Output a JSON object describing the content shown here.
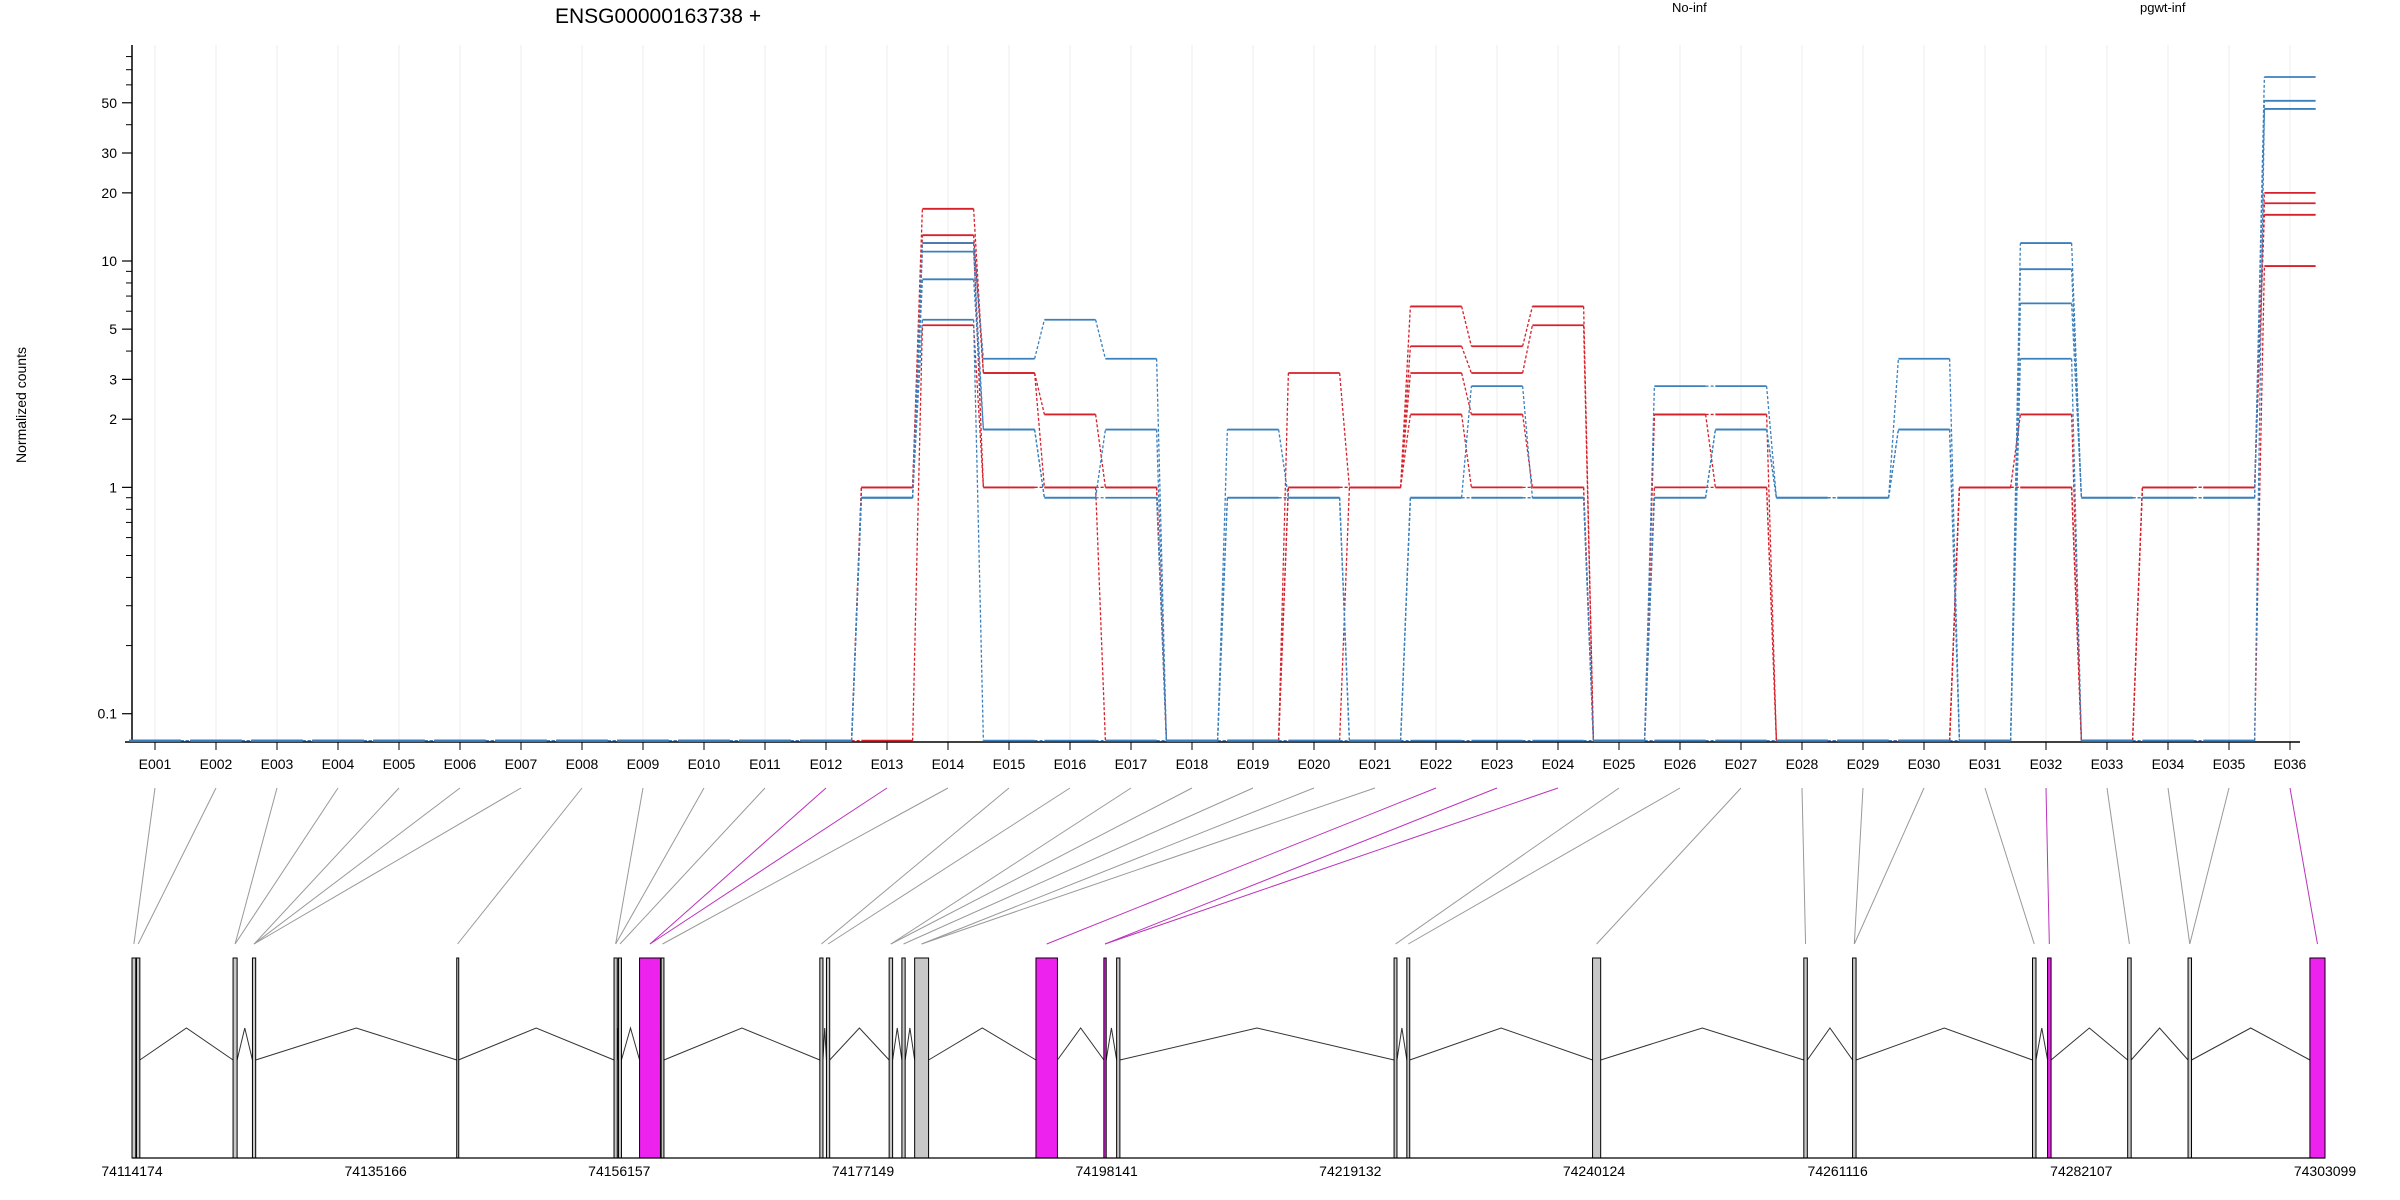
{
  "title": "ENSG00000163738 +",
  "colors": {
    "No-inf": "#d6202a",
    "pgwt-inf": "#3b80bd",
    "tested": "#ee22ee",
    "untested": "#c8c8c8"
  },
  "chart_data": {
    "type": "line",
    "ylabel": "Normalized counts",
    "yscale": "log",
    "yticks": [
      0.1,
      1,
      2,
      3,
      5,
      10,
      20,
      30,
      50
    ],
    "ylim": [
      0.075,
      90
    ],
    "legend_placement": "top",
    "categories": [
      "E001",
      "E002",
      "E003",
      "E004",
      "E005",
      "E006",
      "E007",
      "E008",
      "E009",
      "E010",
      "E011",
      "E012",
      "E013",
      "E014",
      "E015",
      "E016",
      "E017",
      "E018",
      "E019",
      "E020",
      "E021",
      "E022",
      "E023",
      "E024",
      "E025",
      "E026",
      "E027",
      "E028",
      "E029",
      "E030",
      "E031",
      "E032",
      "E033",
      "E034",
      "E035",
      "E036"
    ],
    "series": [
      {
        "name": "No-inf",
        "color": "#d6202a",
        "values": [
          0,
          0,
          0,
          0,
          0,
          0,
          0,
          0,
          0,
          0,
          0,
          0,
          1,
          17,
          3.2,
          2.1,
          1,
          0,
          0,
          3.2,
          1,
          6.3,
          4.2,
          6.3,
          0,
          2.1,
          2.1,
          0,
          0,
          0,
          1,
          2.1,
          0,
          1,
          1,
          20
        ]
      },
      {
        "name": "No-inf",
        "color": "#d6202a",
        "values": [
          0,
          0,
          0,
          0,
          0,
          0,
          0,
          0,
          0,
          0,
          0,
          0,
          1,
          13,
          3.2,
          1,
          1,
          0,
          0,
          1,
          1,
          4.2,
          3.2,
          5.2,
          0,
          2.1,
          1,
          0,
          0,
          0,
          1,
          1,
          0,
          1,
          1,
          18
        ]
      },
      {
        "name": "No-inf",
        "color": "#d6202a",
        "values": [
          0,
          0,
          0,
          0,
          0,
          0,
          0,
          0,
          0,
          0,
          0,
          0,
          1,
          12,
          1,
          1,
          1,
          0,
          0,
          1,
          1,
          3.2,
          2.1,
          1,
          0,
          1,
          1,
          0,
          0,
          0,
          1,
          1,
          0,
          1,
          1,
          16
        ]
      },
      {
        "name": "No-inf",
        "color": "#d6202a",
        "values": [
          0,
          0,
          0,
          0,
          0,
          0,
          0,
          0,
          0,
          0,
          0,
          0,
          0,
          5.2,
          1,
          1,
          0,
          0,
          0,
          0,
          1,
          2.1,
          1,
          1,
          0,
          0,
          0,
          0,
          0,
          0,
          1,
          1,
          0,
          0,
          0,
          9.5
        ]
      },
      {
        "name": "pgwt-inf",
        "color": "#3b80bd",
        "values": [
          0,
          0,
          0,
          0,
          0,
          0,
          0,
          0,
          0,
          0,
          0,
          0,
          0.9,
          12,
          3.7,
          5.5,
          3.7,
          0,
          1.8,
          0.9,
          0,
          0.9,
          2.8,
          0.9,
          0,
          2.8,
          2.8,
          0.9,
          0.9,
          3.7,
          0,
          12,
          0.9,
          0.9,
          0.9,
          65
        ]
      },
      {
        "name": "pgwt-inf",
        "color": "#3b80bd",
        "values": [
          0,
          0,
          0,
          0,
          0,
          0,
          0,
          0,
          0,
          0,
          0,
          0,
          0.9,
          11,
          1.8,
          0.9,
          1.8,
          0,
          0.9,
          0.9,
          0,
          0.9,
          0.9,
          0.9,
          0,
          0.9,
          1.8,
          0.9,
          0.9,
          1.8,
          0,
          9.2,
          0.9,
          0.9,
          0.9,
          51
        ]
      },
      {
        "name": "pgwt-inf",
        "color": "#3b80bd",
        "values": [
          0,
          0,
          0,
          0,
          0,
          0,
          0,
          0,
          0,
          0,
          0,
          0,
          0.9,
          8.3,
          1.8,
          0.9,
          0.9,
          0,
          0.9,
          0.9,
          0,
          0.9,
          0.9,
          0.9,
          0,
          0.9,
          1.8,
          0.9,
          0.9,
          1.8,
          0,
          6.5,
          0.9,
          0.9,
          0.9,
          47
        ]
      },
      {
        "name": "pgwt-inf",
        "color": "#3b80bd",
        "values": [
          0,
          0,
          0,
          0,
          0,
          0,
          0,
          0,
          0,
          0,
          0,
          0,
          0.9,
          5.5,
          0,
          0,
          0,
          0,
          0,
          0,
          0,
          0,
          0,
          0,
          0,
          0,
          0,
          0,
          0,
          0,
          0,
          3.7,
          0,
          0,
          0,
          47
        ]
      }
    ],
    "exons": [
      {
        "s": 74114174,
        "e": 74114500,
        "t": false
      },
      {
        "s": 74114560,
        "e": 74114850,
        "t": false
      },
      {
        "s": 74122880,
        "e": 74123230,
        "t": false
      },
      {
        "s": 74124550,
        "e": 74124830,
        "t": false
      },
      {
        "s": 74142150,
        "e": 74142290,
        "t": false
      },
      {
        "s": 74155700,
        "e": 74155980,
        "t": false
      },
      {
        "s": 74156080,
        "e": 74156340,
        "t": false
      },
      {
        "s": 74157900,
        "e": 74159700,
        "t": true
      },
      {
        "s": 74159760,
        "e": 74160000,
        "t": false
      },
      {
        "s": 74173430,
        "e": 74173700,
        "t": false
      },
      {
        "s": 74174000,
        "e": 74174280,
        "t": false
      },
      {
        "s": 74179400,
        "e": 74179700,
        "t": false
      },
      {
        "s": 74180500,
        "e": 74180780,
        "t": false
      },
      {
        "s": 74181600,
        "e": 74182800,
        "t": false
      },
      {
        "s": 74192050,
        "e": 74193900,
        "t": true
      },
      {
        "s": 74197900,
        "e": 74198100,
        "t": true
      },
      {
        "s": 74199000,
        "e": 74199280,
        "t": false
      },
      {
        "s": 74222900,
        "e": 74223150,
        "t": false
      },
      {
        "s": 74224000,
        "e": 74224250,
        "t": false
      },
      {
        "s": 74240000,
        "e": 74240700,
        "t": false
      },
      {
        "s": 74258200,
        "e": 74258500,
        "t": false
      },
      {
        "s": 74262400,
        "e": 74262700,
        "t": false
      },
      {
        "s": 74277900,
        "e": 74278200,
        "t": false
      },
      {
        "s": 74279200,
        "e": 74279500,
        "t": true
      },
      {
        "s": 74286100,
        "e": 74286400,
        "t": false
      },
      {
        "s": 74291300,
        "e": 74291600,
        "t": false
      },
      {
        "s": 74301800,
        "e": 74303099,
        "t": true
      }
    ],
    "bin_exon_index": [
      0,
      1,
      2,
      2,
      3,
      3,
      3,
      4,
      5,
      5,
      6,
      7,
      7,
      8,
      9,
      10,
      11,
      11,
      12,
      13,
      13,
      14,
      15,
      15,
      17,
      18,
      19,
      20,
      21,
      21,
      22,
      23,
      24,
      25,
      25,
      26
    ],
    "genomic_ticks": [
      74114174,
      74135166,
      74156157,
      74177149,
      74198141,
      74219132,
      74240124,
      74261116,
      74282107,
      74303099
    ],
    "genomic_range": [
      74114174,
      74303099
    ]
  }
}
